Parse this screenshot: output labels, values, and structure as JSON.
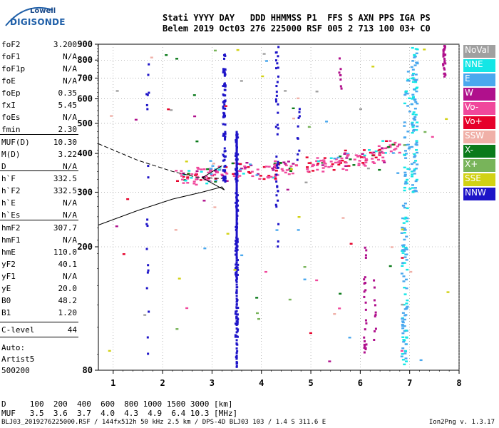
{
  "logo": {
    "brand_top": "Lowell",
    "brand_bottom": "DIGISONDE"
  },
  "header": {
    "line1": "Stati YYYY DAY   DDD HHMMSS P1  FFS S AXN PPS IGA PS",
    "line2": "Belem 2019 Oct03 276 225000 RSF 005 2 713 100 03+ C0"
  },
  "params": [
    {
      "label": "foF2",
      "value": "3.200"
    },
    {
      "label": "foF1",
      "value": "N/A"
    },
    {
      "label": "foF1p",
      "value": "N/A"
    },
    {
      "label": "foE",
      "value": "N/A"
    },
    {
      "label": "foEp",
      "value": "0.35"
    },
    {
      "label": "fxI",
      "value": "5.45"
    },
    {
      "label": "foEs",
      "value": "N/A"
    },
    {
      "label": "fmin",
      "value": "2.30"
    },
    {
      "label": "MUF(D)",
      "value": "10.30"
    },
    {
      "label": "M(D)",
      "value": "3.22"
    },
    {
      "label": "D",
      "value": "N/A"
    },
    {
      "label": "h`F",
      "value": "332.5"
    },
    {
      "label": "h`F2",
      "value": "332.5"
    },
    {
      "label": "h`E",
      "value": "N/A"
    },
    {
      "label": "h`Es",
      "value": "N/A"
    },
    {
      "label": "hmF2",
      "value": "307.7"
    },
    {
      "label": "hmF1",
      "value": "N/A"
    },
    {
      "label": "hmE",
      "value": "110.0"
    },
    {
      "label": "yF2",
      "value": "40.1"
    },
    {
      "label": "yF1",
      "value": "N/A"
    },
    {
      "label": "yE",
      "value": "20.0"
    },
    {
      "label": "B0",
      "value": "48.2"
    },
    {
      "label": "B1",
      "value": "1.20"
    },
    {
      "label": "C-level",
      "value": "44"
    }
  ],
  "auto": {
    "line1": "Auto:",
    "line2": "Artist5",
    "line3": "500200"
  },
  "legend": [
    {
      "label": "NoVal",
      "color": "#a0a0a0"
    },
    {
      "label": "NNE",
      "color": "#14e6e6"
    },
    {
      "label": "E",
      "color": "#4aa8ee"
    },
    {
      "label": "W",
      "color": "#b0108c"
    },
    {
      "label": "Vo-",
      "color": "#f0489c"
    },
    {
      "label": "Vo+",
      "color": "#e6002a"
    },
    {
      "label": "SSW",
      "color": "#f0b0a8"
    },
    {
      "label": "X-",
      "color": "#0a7a1a"
    },
    {
      "label": "X+",
      "color": "#78b45a"
    },
    {
      "label": "SSE",
      "color": "#d2d214"
    },
    {
      "label": "NNW",
      "color": "#1e14c8"
    }
  ],
  "chart_data": {
    "type": "scatter",
    "title": "",
    "xlabel": "",
    "ylabel": "",
    "xlim": [
      0.7,
      8.0
    ],
    "ylim": [
      80,
      900
    ],
    "y_scale": "log",
    "x_ticks": [
      "1",
      "2",
      "3",
      "4",
      "5",
      "6",
      "7",
      "8"
    ],
    "y_ticks": [
      "80",
      "200",
      "300",
      "400",
      "500",
      "600",
      "700",
      "800",
      "900"
    ],
    "grid": true,
    "mode_points": [
      {
        "mode": "Vo-",
        "x": 2.9,
        "y": 340
      },
      {
        "mode": "Vo-",
        "x": 3.05,
        "y": 345
      },
      {
        "mode": "Vo-",
        "x": 3.6,
        "y": 355
      },
      {
        "mode": "Vo-",
        "x": 4.5,
        "y": 360
      },
      {
        "mode": "Vo-",
        "x": 5.2,
        "y": 372
      },
      {
        "mode": "Vo-",
        "x": 5.9,
        "y": 385
      },
      {
        "mode": "Vo-",
        "x": 6.6,
        "y": 420
      },
      {
        "mode": "X-",
        "x": 6.7,
        "y": 395
      },
      {
        "mode": "X-",
        "x": 4.1,
        "y": 420
      },
      {
        "mode": "NNW",
        "x": 3.5,
        "y": 340
      },
      {
        "mode": "NNW",
        "x": 3.25,
        "y": 700
      },
      {
        "mode": "E",
        "x": 7.1,
        "y": 700
      },
      {
        "mode": "E",
        "x": 6.95,
        "y": 180
      },
      {
        "mode": "W",
        "x": 7.7,
        "y": 850
      },
      {
        "mode": "W",
        "x": 6.1,
        "y": 180
      }
    ],
    "trace_dashed": [
      [
        0.7,
        430
      ],
      [
        1.5,
        380
      ],
      [
        2.2,
        350
      ],
      [
        2.7,
        335
      ],
      [
        3.2,
        332
      ]
    ],
    "trace_solid": [
      [
        0.7,
        235
      ],
      [
        1.5,
        262
      ],
      [
        2.2,
        285
      ],
      [
        2.8,
        300
      ],
      [
        3.2,
        312
      ],
      [
        3.25,
        305
      ],
      [
        2.8,
        334
      ],
      [
        3.2,
        365
      ]
    ]
  },
  "muf_table": {
    "line1": "D     100  200  400  600  800 1000 1500 3000 [km]",
    "line2": "MUF   3.5  3.6  3.7  4.0  4.3  4.9  6.4 10.3 [MHz]"
  },
  "footer": "BLJ03_2019276225000.RSF / 144fx512h 50 kHz 2.5 km / DPS-4D BLJ03 103 / 1.4 S 311.6 E",
  "version": "Ion2Png v. 1.3.17"
}
